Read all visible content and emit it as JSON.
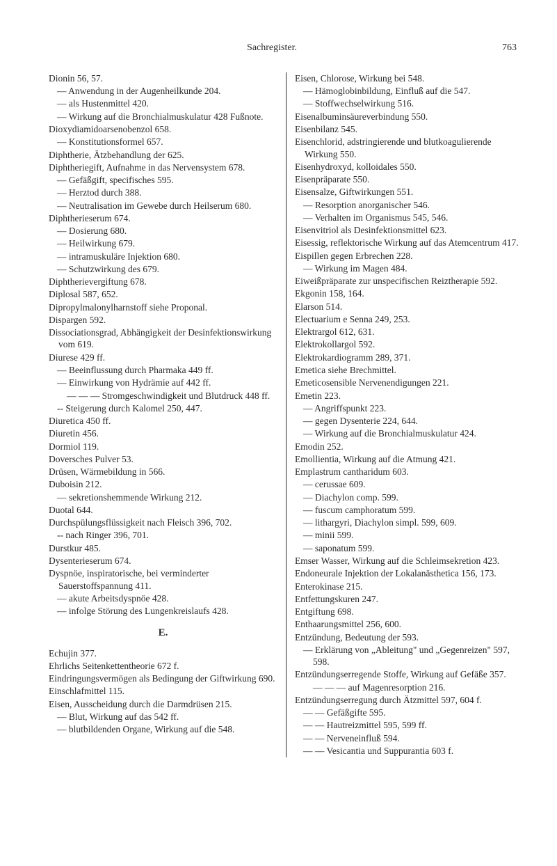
{
  "header": {
    "title": "Sachregister.",
    "page_number": "763"
  },
  "section_letter": "E.",
  "left_column": [
    {
      "t": "Dionin 56, 57."
    },
    {
      "t": "— Anwendung in der Augenheilkunde 204.",
      "c": "sub"
    },
    {
      "t": "— als Hustenmittel 420.",
      "c": "sub"
    },
    {
      "t": "— Wirkung auf die Bronchialmuskula­tur 428 Fußnote.",
      "c": "sub"
    },
    {
      "t": "Dioxydiamidoarsenobenzol 658."
    },
    {
      "t": "— Konstitutionsformel 657.",
      "c": "sub"
    },
    {
      "t": "Diphtherie, Ätzbehandlung der 625."
    },
    {
      "t": "Diphtheriegift, Aufnahme in das Nerven­system 678."
    },
    {
      "t": "— Gefäßgift, specifisches 595.",
      "c": "sub"
    },
    {
      "t": "— Herztod durch 388.",
      "c": "sub"
    },
    {
      "t": "— Neutralisation im Gewebe durch Heilserum 680.",
      "c": "sub"
    },
    {
      "t": "Diphtherieserum 674."
    },
    {
      "t": "— Dosierung 680.",
      "c": "sub"
    },
    {
      "t": "— Heilwirkung 679.",
      "c": "sub"
    },
    {
      "t": "— intramuskuläre Injektion 680.",
      "c": "sub"
    },
    {
      "t": "— Schutzwirkung des 679.",
      "c": "sub"
    },
    {
      "t": "Diphtherievergiftung 678."
    },
    {
      "t": "Diplosal 587, 652."
    },
    {
      "t": "Dipropylmalonylharnstoff siehe Proponal."
    },
    {
      "t": "Dispargen 592."
    },
    {
      "t": "Dissociationsgrad, Abhängigkeit der Des­infektionswirkung vom 619."
    },
    {
      "t": "Diurese 429 ff."
    },
    {
      "t": "— Beeinflussung durch Pharmaka 449 ff.",
      "c": "sub"
    },
    {
      "t": "— Einwirkung von Hydrämie auf 442 ff.",
      "c": "sub"
    },
    {
      "t": "— — — Stromgeschwindigkeit und Blutdruck 448 ff.",
      "c": "subsub"
    },
    {
      "t": "-- Steigerung durch Kalomel 250, 447.",
      "c": "sub"
    },
    {
      "t": "Diuretica 450 ff."
    },
    {
      "t": "Diuretin 456."
    },
    {
      "t": "Dormiol 119."
    },
    {
      "t": "Doversches Pulver 53."
    },
    {
      "t": "Drüsen, Wärmebildung in 566."
    },
    {
      "t": "Duboisin 212."
    },
    {
      "t": "— sekretionshemmende Wirkung 212.",
      "c": "sub"
    },
    {
      "t": "Duotal 644."
    },
    {
      "t": "Durchspülungsflüssigkeit nach Fleisch 396, 702."
    },
    {
      "t": "-- nach Ringer 396, 701.",
      "c": "sub"
    },
    {
      "t": "Durstkur 485."
    },
    {
      "t": "Dysenterieserum 674."
    },
    {
      "t": "Dyspnöe, inspiratorische, bei vermin­derter Sauerstoffspannung 411."
    },
    {
      "t": "— akute Arbeitsdyspnöe 428.",
      "c": "sub"
    },
    {
      "t": "— infolge Störung des Lungenkreislaufs 428.",
      "c": "sub"
    }
  ],
  "left_column_e": [
    {
      "t": "Echujin 377."
    },
    {
      "t": "Ehrlichs Seitenkettentheorie 672 f."
    },
    {
      "t": "Eindringungsvermögen als Bedingung der Giftwirkung 690."
    },
    {
      "t": "Einschlafmittel 115."
    },
    {
      "t": "Eisen, Ausscheidung durch die Darm­drüsen 215."
    },
    {
      "t": "— Blut, Wirkung auf das 542 ff.",
      "c": "sub"
    },
    {
      "t": "— blutbildenden Organe, Wirkung auf die 548.",
      "c": "sub"
    }
  ],
  "right_column": [
    {
      "t": "Eisen, Chlorose, Wirkung bei 548."
    },
    {
      "t": "— Hämoglobinbildung, Einfluß auf die 547.",
      "c": "sub"
    },
    {
      "t": "— Stoffwechselwirkung 516.",
      "c": "sub"
    },
    {
      "t": "Eisenalbuminsäureverbindung 550."
    },
    {
      "t": "Eisenbilanz 545."
    },
    {
      "t": "Eisenchlorid, adstringierende und blut­koagulierende Wirkung 550."
    },
    {
      "t": "Eisenhydroxyd, kolloidales 550."
    },
    {
      "t": "Eisenpräparate 550."
    },
    {
      "t": "Eisensalze, Giftwirkungen 551."
    },
    {
      "t": "— Resorption anorganischer 546.",
      "c": "sub"
    },
    {
      "t": "— Verhalten im Organismus 545, 546.",
      "c": "sub"
    },
    {
      "t": "Eisenvitriol als Desinfektionsmittel 623."
    },
    {
      "t": "Eisessig, reflektorische Wirkung auf das Atemcentrum 417."
    },
    {
      "t": "Eispillen gegen Erbrechen 228."
    },
    {
      "t": "— Wirkung im Magen 484.",
      "c": "sub"
    },
    {
      "t": "Eiweißpräparate zur unspecifischen Reiz­therapie 592."
    },
    {
      "t": "Ekgonin 158, 164."
    },
    {
      "t": "Elarson 514."
    },
    {
      "t": "Electuarium e Senna 249, 253."
    },
    {
      "t": "Elektrargol 612, 631."
    },
    {
      "t": "Elektrokollargol 592."
    },
    {
      "t": "Elektrokardiogramm 289, 371."
    },
    {
      "t": "Emetica siehe Brechmittel."
    },
    {
      "t": "Emeticosensible Nervenendigungen 221."
    },
    {
      "t": "Emetin 223."
    },
    {
      "t": "— Angriffspunkt 223.",
      "c": "sub"
    },
    {
      "t": "— gegen Dysenterie 224, 644.",
      "c": "sub"
    },
    {
      "t": "— Wirkung auf die Bronchialmuskulatur 424.",
      "c": "sub"
    },
    {
      "t": "Emodin 252."
    },
    {
      "t": "Emollientia, Wirkung auf die Atmung 421."
    },
    {
      "t": "Emplastrum cantharidum 603."
    },
    {
      "t": "— cerussae 609.",
      "c": "sub"
    },
    {
      "t": "— Diachylon comp. 599.",
      "c": "sub"
    },
    {
      "t": "— fuscum camphoratum 599.",
      "c": "sub"
    },
    {
      "t": "— lithargyri, Diachylon simpl. 599, 609.",
      "c": "sub"
    },
    {
      "t": "— minii 599.",
      "c": "sub"
    },
    {
      "t": "— saponatum 599.",
      "c": "sub"
    },
    {
      "t": "Emser Wasser, Wirkung auf die Schleim­sekretion 423."
    },
    {
      "t": "Endoneurale Injektion der Lokalanästhe­tica 156, 173."
    },
    {
      "t": "Enterokinase 215."
    },
    {
      "t": "Entfettungskuren 247."
    },
    {
      "t": "Entgiftung 698."
    },
    {
      "t": "Enthaarungsmittel 256, 600."
    },
    {
      "t": "Entzündung, Bedeutung der 593."
    },
    {
      "t": "— Erklärung von „Ableitung\" und „Gegenreizen\" 597, 598.",
      "c": "sub"
    },
    {
      "t": "Entzündungserregende Stoffe, Wirkung auf Gefäße 357."
    },
    {
      "t": "— — — auf Magenresorption 216.",
      "c": "subsub"
    },
    {
      "t": "Entzündungserregung durch Ätzmittel 597, 604 f."
    },
    {
      "t": "— — Gefäßgifte 595.",
      "c": "sub"
    },
    {
      "t": "— — Hautreizmittel 595, 599 ff.",
      "c": "sub"
    },
    {
      "t": "— — Nerveneinfluß 594.",
      "c": "sub"
    },
    {
      "t": "— — Vesicantia und Suppurantia 603 f.",
      "c": "sub"
    }
  ]
}
